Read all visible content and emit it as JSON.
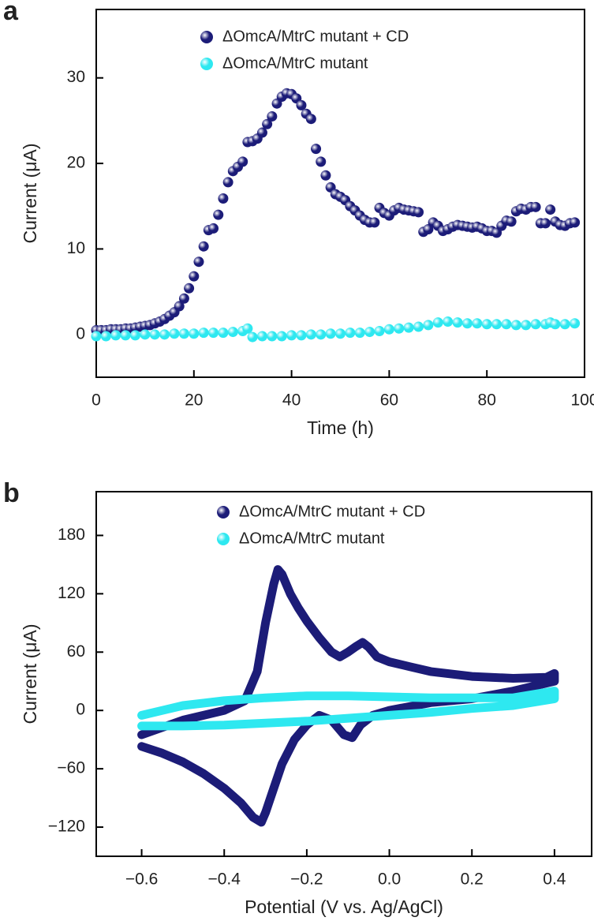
{
  "chart_data": [
    {
      "type": "scatter",
      "panel_label": "a",
      "xlabel": "Time (h)",
      "ylabel": "Current (μA)",
      "xlim": [
        0,
        100
      ],
      "xticks": [
        0,
        20,
        40,
        60,
        80,
        100
      ],
      "ylim": [
        -5,
        38
      ],
      "yticks": [
        0,
        10,
        20,
        30
      ],
      "series": [
        {
          "name": "ΔOmcA/MtrC mutant + CD",
          "color": "#1c1c78",
          "x": [
            0,
            1,
            2,
            3,
            4,
            5,
            6,
            7,
            8,
            9,
            10,
            11,
            12,
            13,
            14,
            15,
            16,
            17,
            18,
            19,
            20,
            21,
            22,
            23,
            24,
            25,
            26,
            27,
            28,
            29,
            30,
            31,
            32,
            33,
            34,
            35,
            36,
            37,
            38,
            39,
            40,
            41,
            42,
            43,
            44,
            45,
            46,
            47,
            48,
            49,
            50,
            51,
            52,
            53,
            54,
            55,
            56,
            57,
            58,
            59,
            60,
            61,
            62,
            63,
            64,
            65,
            66,
            67,
            68,
            69,
            70,
            71,
            72,
            73,
            74,
            75,
            76,
            77,
            78,
            79,
            80,
            81,
            82,
            83,
            84,
            85,
            86,
            87,
            88,
            89,
            90,
            91,
            92,
            93,
            94,
            95,
            96,
            97,
            98
          ],
          "values": [
            0.5,
            0.5,
            0.5,
            0.6,
            0.6,
            0.6,
            0.7,
            0.7,
            0.8,
            0.9,
            1.0,
            1.1,
            1.3,
            1.5,
            1.8,
            2.2,
            2.6,
            3.3,
            4.2,
            5.4,
            6.8,
            8.5,
            10.3,
            12.2,
            12.4,
            14,
            15.9,
            17.8,
            19.1,
            19.6,
            20.2,
            22.5,
            22.6,
            22.9,
            23.6,
            24.6,
            25.5,
            27,
            27.8,
            28.2,
            28.1,
            27.6,
            26.8,
            25.8,
            25.2,
            21.7,
            20.2,
            18.6,
            17.2,
            16.4,
            16.1,
            15.7,
            15,
            14.5,
            13.9,
            13.4,
            13.1,
            13.1,
            14.8,
            14.2,
            13.9,
            14.5,
            14.8,
            14.6,
            14.5,
            14.4,
            14.3,
            12,
            12.3,
            13.1,
            12.7,
            12.1,
            12.3,
            12.6,
            12.8,
            12.7,
            12.6,
            12.5,
            12.6,
            12.4,
            12.1,
            12.1,
            11.9,
            12.7,
            13.3,
            13.2,
            14.4,
            14.7,
            14.6,
            14.9,
            14.9,
            13,
            13,
            14.6,
            13.2,
            12.8,
            12.7,
            13,
            13.1
          ]
        },
        {
          "name": "ΔOmcA/MtrC mutant",
          "color": "#2ee8f0",
          "x": [
            0,
            2,
            4,
            6,
            8,
            10,
            12,
            14,
            16,
            18,
            20,
            22,
            24,
            26,
            28,
            30,
            31,
            32,
            34,
            36,
            38,
            40,
            42,
            44,
            46,
            48,
            50,
            52,
            54,
            56,
            58,
            60,
            62,
            64,
            66,
            68,
            70,
            72,
            74,
            76,
            78,
            80,
            82,
            84,
            86,
            88,
            90,
            92,
            93,
            94,
            96,
            98
          ],
          "values": [
            -0.2,
            -0.2,
            -0.1,
            -0.1,
            -0.1,
            0,
            0,
            0,
            0.1,
            0.1,
            0.1,
            0.2,
            0.2,
            0.2,
            0.3,
            0.4,
            0.7,
            -0.3,
            -0.2,
            -0.2,
            -0.2,
            -0.1,
            -0.1,
            0,
            0,
            0.1,
            0.1,
            0.2,
            0.2,
            0.3,
            0.4,
            0.6,
            0.7,
            0.8,
            0.9,
            1.1,
            1.4,
            1.5,
            1.4,
            1.3,
            1.3,
            1.2,
            1.2,
            1.2,
            1.1,
            1.1,
            1.2,
            1.2,
            1.4,
            1.2,
            1.2,
            1.3
          ]
        }
      ]
    },
    {
      "type": "line",
      "panel_label": "b",
      "xlabel": "Potential (V vs. Ag/AgCl)",
      "ylabel": "Current (μA)",
      "xlim": [
        -0.71,
        0.49
      ],
      "xticks": [
        {
          "value": -0.6,
          "label": "−0.6"
        },
        {
          "value": -0.4,
          "label": "−0.4"
        },
        {
          "value": -0.2,
          "label": "−0.2"
        },
        {
          "value": 0,
          "label": "0.0"
        },
        0.2,
        0.4
      ],
      "ylim": [
        -150,
        225
      ],
      "yticks": [
        {
          "value": -120,
          "label": "−120"
        },
        {
          "value": -60,
          "label": "−60"
        },
        0,
        60,
        120,
        180
      ],
      "series": [
        {
          "name": "ΔOmcA/MtrC mutant + CD",
          "color": "#1c1c78",
          "x": [
            -0.6,
            -0.5,
            -0.4,
            -0.35,
            -0.32,
            -0.3,
            -0.28,
            -0.27,
            -0.26,
            -0.24,
            -0.22,
            -0.2,
            -0.17,
            -0.14,
            -0.12,
            -0.1,
            -0.08,
            -0.065,
            -0.05,
            -0.03,
            0,
            0.05,
            0.1,
            0.2,
            0.3,
            0.38,
            0.4,
            0.4,
            0.3,
            0.2,
            0.1,
            0,
            -0.04,
            -0.07,
            -0.09,
            -0.11,
            -0.14,
            -0.17,
            -0.2,
            -0.23,
            -0.26,
            -0.28,
            -0.3,
            -0.31,
            -0.33,
            -0.36,
            -0.4,
            -0.45,
            -0.5,
            -0.55,
            -0.6
          ],
          "values": [
            -25,
            -10,
            0,
            10,
            40,
            90,
            130,
            145,
            140,
            120,
            105,
            92,
            75,
            60,
            55,
            60,
            66,
            70,
            65,
            55,
            50,
            45,
            40,
            35,
            33,
            34,
            38,
            30,
            20,
            12,
            8,
            0,
            -5,
            -15,
            -28,
            -25,
            -10,
            -5,
            -15,
            -30,
            -55,
            -80,
            -105,
            -115,
            -110,
            -95,
            -80,
            -65,
            -53,
            -44,
            -37
          ]
        },
        {
          "name": "ΔOmcA/MtrC mutant",
          "color": "#2ee8f0",
          "x": [
            -0.6,
            -0.55,
            -0.5,
            -0.4,
            -0.3,
            -0.2,
            -0.1,
            0,
            0.1,
            0.2,
            0.3,
            0.4,
            0.4,
            0.3,
            0.2,
            0.1,
            0,
            -0.1,
            -0.2,
            -0.3,
            -0.4,
            -0.5,
            -0.6
          ],
          "values": [
            -5,
            0,
            5,
            10,
            13,
            15,
            15,
            14,
            13,
            13,
            13,
            20,
            12,
            5,
            2,
            -2,
            -5,
            -8,
            -11,
            -13,
            -15,
            -16,
            -16
          ]
        }
      ]
    }
  ]
}
